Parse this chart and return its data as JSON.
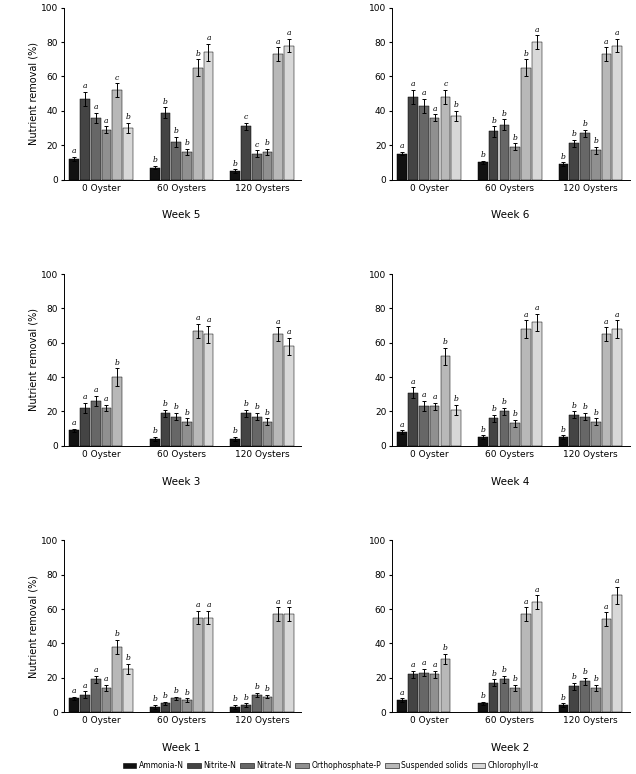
{
  "subplot_weeks": [
    [
      "Week 5",
      "Week 6"
    ],
    [
      "Week 3",
      "Week 4"
    ],
    [
      "Week 1",
      "Week 2"
    ]
  ],
  "groups": [
    "0 Oyster",
    "60 Oysters",
    "120 Oysters"
  ],
  "nutrients": [
    "Ammonia-N",
    "Nitrite-N",
    "Nitrate-N",
    "Orthophosphate-P",
    "Suspended solids",
    "Chlorophyll-a"
  ],
  "colors": [
    "#111111",
    "#444444",
    "#676767",
    "#909090",
    "#b8b8b8",
    "#d8d8d8"
  ],
  "values": {
    "Week 5": {
      "0 Oyster": [
        12,
        47,
        36,
        29,
        52,
        30
      ],
      "60 Oysters": [
        7,
        39,
        22,
        16,
        65,
        74
      ],
      "120 Oysters": [
        5,
        31,
        15,
        16,
        73,
        78
      ]
    },
    "Week 6": {
      "0 Oyster": [
        15,
        48,
        43,
        36,
        48,
        37
      ],
      "60 Oysters": [
        10,
        28,
        32,
        19,
        65,
        80
      ],
      "120 Oysters": [
        9,
        21,
        27,
        17,
        73,
        78
      ]
    },
    "Week 3": {
      "0 Oyster": [
        9,
        22,
        26,
        22,
        40,
        0
      ],
      "60 Oysters": [
        4,
        19,
        17,
        14,
        67,
        65
      ],
      "120 Oysters": [
        4,
        19,
        17,
        14,
        65,
        58
      ]
    },
    "Week 4": {
      "0 Oyster": [
        8,
        31,
        23,
        23,
        52,
        21
      ],
      "60 Oysters": [
        5,
        16,
        20,
        13,
        68,
        72
      ],
      "120 Oysters": [
        5,
        18,
        17,
        14,
        65,
        68
      ]
    },
    "Week 1": {
      "0 Oyster": [
        8,
        10,
        19,
        14,
        38,
        25
      ],
      "60 Oysters": [
        3,
        5,
        8,
        7,
        55,
        55
      ],
      "120 Oysters": [
        3,
        4,
        10,
        9,
        57,
        57
      ]
    },
    "Week 2": {
      "0 Oyster": [
        7,
        22,
        23,
        22,
        31,
        0
      ],
      "60 Oysters": [
        5,
        17,
        19,
        14,
        57,
        64
      ],
      "120 Oysters": [
        4,
        15,
        18,
        14,
        54,
        68
      ]
    }
  },
  "errors": {
    "Week 5": {
      "0 Oyster": [
        1,
        4,
        3,
        2,
        4,
        3
      ],
      "60 Oysters": [
        1,
        3,
        3,
        2,
        5,
        5
      ],
      "120 Oysters": [
        1,
        2,
        2,
        2,
        4,
        4
      ]
    },
    "Week 6": {
      "0 Oyster": [
        1,
        4,
        4,
        2,
        4,
        3
      ],
      "60 Oysters": [
        1,
        3,
        3,
        2,
        5,
        4
      ],
      "120 Oysters": [
        1,
        2,
        2,
        2,
        4,
        4
      ]
    },
    "Week 3": {
      "0 Oyster": [
        1,
        3,
        3,
        2,
        5,
        0
      ],
      "60 Oysters": [
        1,
        2,
        2,
        2,
        4,
        5
      ],
      "120 Oysters": [
        1,
        2,
        2,
        2,
        4,
        5
      ]
    },
    "Week 4": {
      "0 Oyster": [
        1,
        3,
        3,
        2,
        5,
        3
      ],
      "60 Oysters": [
        1,
        2,
        2,
        2,
        5,
        5
      ],
      "120 Oysters": [
        1,
        2,
        2,
        2,
        4,
        5
      ]
    },
    "Week 1": {
      "0 Oyster": [
        1,
        2,
        2,
        2,
        4,
        3
      ],
      "60 Oysters": [
        1,
        1,
        1,
        1,
        4,
        4
      ],
      "120 Oysters": [
        1,
        1,
        1,
        1,
        4,
        4
      ]
    },
    "Week 2": {
      "0 Oyster": [
        1,
        2,
        2,
        2,
        3,
        0
      ],
      "60 Oysters": [
        1,
        2,
        2,
        2,
        4,
        4
      ],
      "120 Oysters": [
        1,
        2,
        2,
        2,
        4,
        5
      ]
    }
  },
  "letters": {
    "Week 5": {
      "0 Oyster": [
        "a",
        "a",
        "a",
        "a",
        "c",
        "b"
      ],
      "60 Oysters": [
        "b",
        "b",
        "b",
        "b",
        "b",
        "a"
      ],
      "120 Oysters": [
        "b",
        "c",
        "c",
        "b",
        "a",
        "a"
      ]
    },
    "Week 6": {
      "0 Oyster": [
        "a",
        "a",
        "a",
        "a",
        "c",
        "b"
      ],
      "60 Oysters": [
        "b",
        "b",
        "b",
        "b",
        "b",
        "a"
      ],
      "120 Oysters": [
        "b",
        "b",
        "b",
        "b",
        "a",
        "a"
      ]
    },
    "Week 3": {
      "0 Oyster": [
        "a",
        "a",
        "a",
        "a",
        "b",
        ""
      ],
      "60 Oysters": [
        "b",
        "b",
        "b",
        "b",
        "a",
        "a"
      ],
      "120 Oysters": [
        "b",
        "b",
        "b",
        "b",
        "a",
        "a"
      ]
    },
    "Week 4": {
      "0 Oyster": [
        "a",
        "a",
        "a",
        "a",
        "b",
        "b"
      ],
      "60 Oysters": [
        "b",
        "b",
        "b",
        "b",
        "a",
        "a"
      ],
      "120 Oysters": [
        "b",
        "b",
        "b",
        "b",
        "a",
        "a"
      ]
    },
    "Week 1": {
      "0 Oyster": [
        "a",
        "a",
        "a",
        "a",
        "b",
        "b"
      ],
      "60 Oysters": [
        "b",
        "b",
        "b",
        "b",
        "a",
        "a"
      ],
      "120 Oysters": [
        "b",
        "b",
        "b",
        "b",
        "a",
        "a"
      ]
    },
    "Week 2": {
      "0 Oyster": [
        "a",
        "a",
        "a",
        "a",
        "b",
        ""
      ],
      "60 Oysters": [
        "b",
        "b",
        "b",
        "b",
        "a",
        "a"
      ],
      "120 Oysters": [
        "b",
        "b",
        "b",
        "b",
        "a",
        "a"
      ]
    }
  },
  "ylabel": "Nutrient removal (%)",
  "ylim": [
    0,
    100
  ],
  "yticks": [
    0,
    20,
    40,
    60,
    80,
    100
  ],
  "legend_labels": [
    "Ammonia-N",
    "Nitrite-N",
    "Nitrate-N",
    "Orthophosphate-P",
    "Suspended solids",
    "Chlorophyll-α"
  ]
}
